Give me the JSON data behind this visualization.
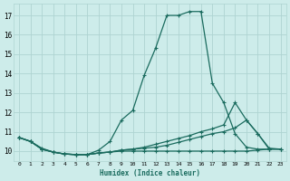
{
  "xlabel": "Humidex (Indice chaleur)",
  "x_min": -0.5,
  "x_max": 23.5,
  "y_min": 9.5,
  "y_max": 17.6,
  "y_ticks": [
    10,
    11,
    12,
    13,
    14,
    15,
    16,
    17
  ],
  "x_ticks": [
    0,
    1,
    2,
    3,
    4,
    5,
    6,
    7,
    8,
    9,
    10,
    11,
    12,
    13,
    14,
    15,
    16,
    17,
    18,
    19,
    20,
    21,
    22,
    23
  ],
  "line_color": "#1a6b5e",
  "bg_color": "#cdecea",
  "grid_color": "#aed4d1",
  "s1_x": [
    0,
    1,
    2,
    3,
    4,
    5,
    6,
    7,
    8,
    9,
    10,
    11,
    12,
    13,
    14,
    15,
    16,
    17,
    18,
    19,
    20,
    21,
    22
  ],
  "s1_y": [
    10.7,
    10.5,
    10.15,
    9.95,
    9.85,
    9.82,
    9.82,
    10.05,
    10.5,
    11.6,
    12.1,
    13.9,
    15.3,
    17.0,
    17.0,
    17.2,
    17.2,
    13.5,
    12.5,
    10.9,
    10.2,
    10.1,
    10.1
  ],
  "s2_x": [
    0,
    1,
    2,
    3,
    4,
    5,
    6,
    7,
    8,
    9,
    10,
    11,
    12,
    13,
    14,
    15,
    16,
    17,
    18,
    19,
    20,
    21,
    22,
    23
  ],
  "s2_y": [
    10.7,
    10.5,
    10.1,
    9.95,
    9.85,
    9.82,
    9.82,
    9.9,
    9.95,
    10.05,
    10.1,
    10.2,
    10.35,
    10.5,
    10.65,
    10.8,
    11.0,
    11.15,
    11.35,
    12.5,
    11.6,
    10.9,
    10.15,
    10.1
  ],
  "s3_x": [
    0,
    1,
    2,
    3,
    4,
    5,
    6,
    7,
    8,
    9,
    10,
    11,
    12,
    13,
    14,
    15,
    16,
    17,
    18,
    19,
    20,
    21,
    22,
    23
  ],
  "s3_y": [
    10.7,
    10.5,
    10.1,
    9.95,
    9.85,
    9.82,
    9.82,
    9.9,
    9.95,
    10.05,
    10.1,
    10.15,
    10.2,
    10.3,
    10.45,
    10.6,
    10.75,
    10.9,
    11.0,
    11.2,
    11.6,
    10.9,
    10.1,
    10.1
  ],
  "s4_x": [
    0,
    1,
    2,
    3,
    4,
    5,
    6,
    7,
    8,
    9,
    10,
    11,
    12,
    13,
    14,
    15,
    16,
    17,
    18,
    19,
    20,
    21,
    22,
    23
  ],
  "s4_y": [
    10.7,
    10.5,
    10.1,
    9.95,
    9.85,
    9.82,
    9.82,
    9.9,
    9.95,
    10.0,
    10.0,
    10.0,
    10.0,
    10.0,
    10.0,
    10.0,
    10.0,
    10.0,
    10.0,
    10.0,
    10.0,
    10.05,
    10.1,
    10.1
  ]
}
